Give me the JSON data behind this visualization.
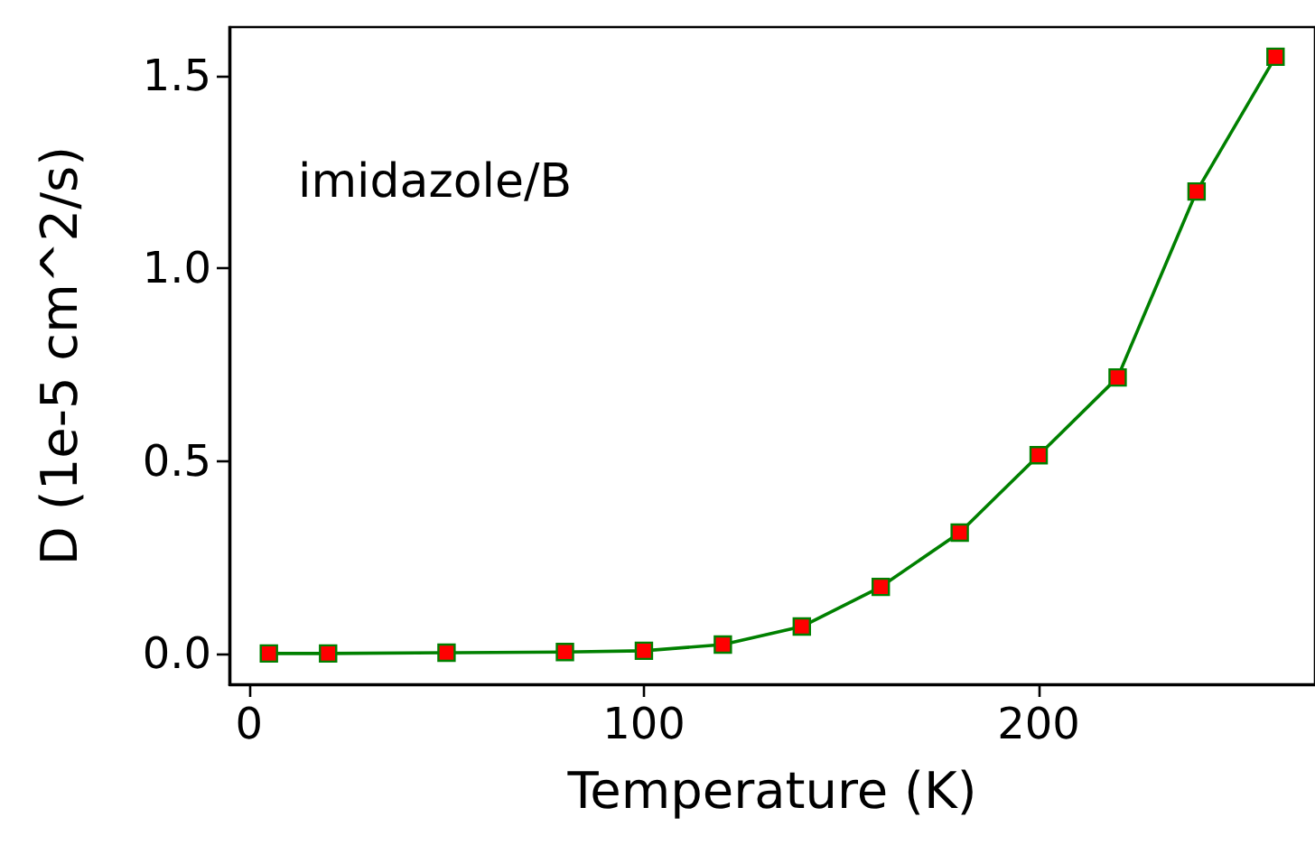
{
  "chart_data": {
    "type": "line",
    "xlabel": "Temperature (K)",
    "ylabel": "D (1e-5 cm^2/s)",
    "annotations": [
      "imidazole/B"
    ],
    "x": [
      5,
      20,
      50,
      80,
      100,
      120,
      140,
      160,
      180,
      200,
      220,
      240,
      260
    ],
    "series": [
      {
        "color": "#008000",
        "colors": [
          "#ff0000",
          "#ff0000",
          "#ff0000",
          "#ff0000",
          "#ff0000",
          "#ff0000",
          "#ff0000",
          "#ff0000",
          "#ff0000",
          "#ff0000",
          "#ff0000",
          "#ff0000",
          "#ff0000"
        ],
        "values": [
          0.0,
          0.0,
          0.002,
          0.004,
          0.007,
          0.023,
          0.07,
          0.173,
          0.314,
          0.515,
          0.717,
          1.2,
          1.55
        ]
      }
    ],
    "xlim": [
      -5,
      270
    ],
    "xticks": [
      0,
      100,
      200
    ],
    "ylim": [
      -0.08,
      1.627
    ],
    "yticks": [
      {
        "value": 0,
        "label": "0.0"
      },
      0.5,
      {
        "value": 1,
        "label": "1.0"
      },
      1.5
    ],
    "marker": "square",
    "line_style": "solid",
    "grid": false
  }
}
